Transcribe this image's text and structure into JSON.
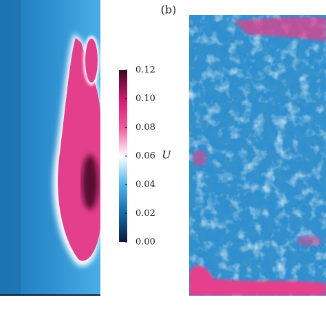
{
  "chart_data": {
    "type": "colorbar",
    "panel_label": "(b)",
    "colorbar_label": "U",
    "ylim": [
      0,
      0.12
    ],
    "yticks": [
      {
        "value": 0,
        "label": "0.00"
      },
      0.02,
      0.04,
      0.06,
      0.08,
      {
        "value": 0.1,
        "label": "0.10"
      },
      0.12
    ],
    "colormap": [
      "#0b1a3c",
      "#1668a8",
      "#4fb4ea",
      "#ffffff",
      "#f2579c",
      "#d3186c",
      "#3e0722"
    ]
  }
}
